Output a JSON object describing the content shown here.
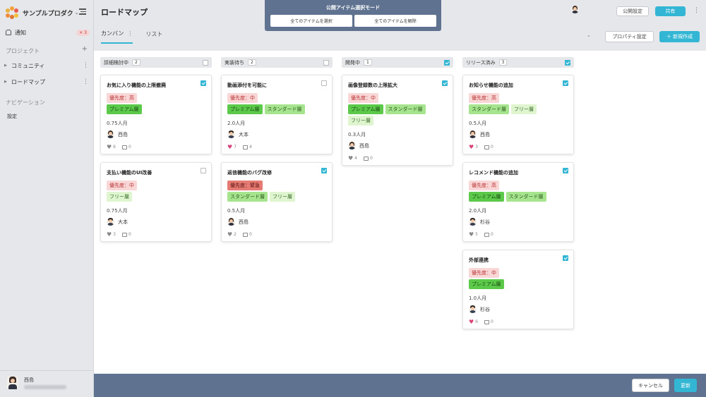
{
  "app": {
    "name": "サンプルプロダク",
    "page_title": "ロードマップ"
  },
  "sidebar": {
    "notify_label": "通知",
    "notify_badge": "× 3",
    "projects_title": "プロジェクト",
    "projects": [
      {
        "label": "コミュニティ"
      },
      {
        "label": "ロードマップ"
      }
    ],
    "nav_title": "ナビゲーション",
    "nav_items": [
      {
        "label": "設定"
      }
    ],
    "user_name": "西島"
  },
  "header": {
    "public_settings": "公開設定",
    "share": "共有",
    "tabs": [
      {
        "label": "カンバン"
      },
      {
        "label": "リスト"
      }
    ],
    "property_settings": "プロパティ設定",
    "new_create": "＋ 新規作成"
  },
  "banner": {
    "title": "公開アイテム選択モード",
    "select_all": "全てのアイテムを選択",
    "deselect_all": "全てのアイテムを解除"
  },
  "columns": [
    {
      "title": "詳細検討中",
      "count": "2",
      "checked": false,
      "cards": [
        {
          "title": "お気に入り機能の上限撤廃",
          "checked": true,
          "tags": [
            [
              "優先度：高"
            ],
            [
              "プレミアム層"
            ]
          ],
          "effort": "0.75人月",
          "assignee": "西島",
          "likes": "6",
          "comments": "0",
          "liked": false
        },
        {
          "title": "支払い機能のUI改善",
          "checked": false,
          "tags": [
            [
              "優先度：中"
            ],
            [
              "フリー層"
            ]
          ],
          "effort": "0.75人月",
          "assignee": "大本",
          "likes": "3",
          "comments": "0",
          "liked": false
        }
      ]
    },
    {
      "title": "実装待ち",
      "count": "2",
      "checked": false,
      "cards": [
        {
          "title": "動画添付を可能に",
          "checked": false,
          "tags": [
            [
              "優先度：中"
            ],
            [
              "プレミアム層",
              "スタンダード層"
            ]
          ],
          "effort": "2.0人月",
          "assignee": "大本",
          "likes": "7",
          "comments": "4",
          "liked": true
        },
        {
          "title": "返信機能のバグ改修",
          "checked": true,
          "tags": [
            [
              "優先度：緊急"
            ],
            [
              "スタンダード層",
              "フリー層"
            ]
          ],
          "effort": "0.5人月",
          "assignee": "西島",
          "likes": "2",
          "comments": "0",
          "liked": false
        }
      ]
    },
    {
      "title": "開発中",
      "count": "1",
      "checked": true,
      "cards": [
        {
          "title": "画像登録数の上限拡大",
          "checked": true,
          "tags": [
            [
              "優先度：中"
            ],
            [
              "プレミアム層",
              "スタンダード層"
            ],
            [
              "フリー層"
            ]
          ],
          "effort": "0.3人月",
          "assignee": "西島",
          "likes": "4",
          "comments": "0",
          "liked": false
        }
      ]
    },
    {
      "title": "リリース済み",
      "count": "3",
      "checked": true,
      "cards": [
        {
          "title": "お知らせ機能の追加",
          "checked": true,
          "tags": [
            [
              "優先度：高"
            ],
            [
              "スタンダード層",
              "フリー層"
            ]
          ],
          "effort": "0.5人月",
          "assignee": "西島",
          "likes": "3",
          "comments": "0",
          "liked": true
        },
        {
          "title": "レコメンド機能の追加",
          "checked": true,
          "tags": [
            [
              "優先度：高"
            ],
            [
              "プレミアム層",
              "スタンダード層"
            ]
          ],
          "effort": "2.0人月",
          "assignee": "杉谷",
          "likes": "5",
          "comments": "0",
          "liked": false
        },
        {
          "title": "外部連携",
          "checked": true,
          "tags": [
            [
              "優先度：中"
            ],
            [
              "プレミアム層"
            ]
          ],
          "effort": "1.0人月",
          "assignee": "杉谷",
          "likes": "6",
          "comments": "0",
          "liked": true
        }
      ]
    }
  ],
  "footer": {
    "cancel": "キャンセル",
    "update": "更新"
  },
  "colors": {
    "accent": "#32b6d4",
    "banner": "#5f7390",
    "like_active": "#d8437a"
  }
}
